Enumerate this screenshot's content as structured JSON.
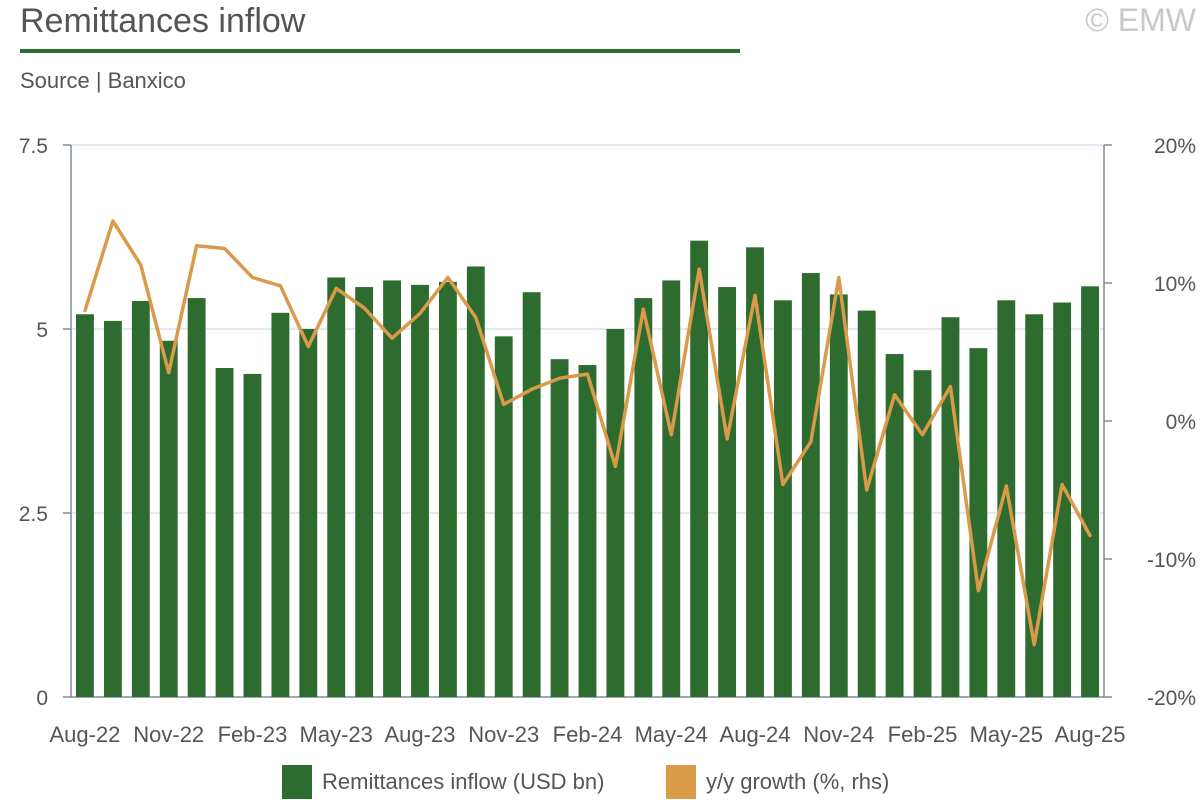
{
  "header": {
    "title": "Remittances inflow",
    "copyright": "© EMW",
    "source": "Source | Banxico"
  },
  "colors": {
    "bars": "#2e6b2e",
    "line": "#d99a4a",
    "grid": "#d9e2ec",
    "axis": "#7f8a99",
    "text": "#555555"
  },
  "legend": {
    "bars_label": "Remittances inflow (USD bn)",
    "line_label": "y/y growth (%, rhs)"
  },
  "chart_data": {
    "type": "bar",
    "title": "Remittances inflow",
    "x_tick_labels": [
      "Aug-22",
      "Nov-22",
      "Feb-23",
      "May-23",
      "Aug-23",
      "Nov-23",
      "Feb-24",
      "May-24",
      "Aug-24",
      "Nov-24",
      "Feb-25",
      "May-25",
      "Aug-25"
    ],
    "categories": [
      "Aug-22",
      "Sep-22",
      "Oct-22",
      "Nov-22",
      "Dec-22",
      "Jan-23",
      "Feb-23",
      "Mar-23",
      "Apr-23",
      "May-23",
      "Jun-23",
      "Jul-23",
      "Aug-23",
      "Sep-23",
      "Oct-23",
      "Nov-23",
      "Dec-23",
      "Jan-24",
      "Feb-24",
      "Mar-24",
      "Apr-24",
      "May-24",
      "Jun-24",
      "Jul-24",
      "Aug-24",
      "Sep-24",
      "Oct-24",
      "Nov-24",
      "Dec-24",
      "Jan-25",
      "Feb-25",
      "Mar-25",
      "Apr-25",
      "May-25",
      "Jun-25",
      "Jul-25",
      "Aug-25"
    ],
    "series": [
      {
        "name": "Remittances inflow (USD bn)",
        "type": "bar",
        "axis": "left",
        "values": [
          5.2,
          5.11,
          5.38,
          4.84,
          5.42,
          4.47,
          4.39,
          5.22,
          5.0,
          5.7,
          5.57,
          5.66,
          5.6,
          5.64,
          5.85,
          4.9,
          5.5,
          4.59,
          4.51,
          5.0,
          5.42,
          5.66,
          6.2,
          5.57,
          6.11,
          5.39,
          5.76,
          5.47,
          5.25,
          4.66,
          4.44,
          5.16,
          4.74,
          5.39,
          5.2,
          5.36,
          5.58
        ]
      },
      {
        "name": "y/y growth (%, rhs)",
        "type": "line",
        "axis": "right",
        "values": [
          8.0,
          14.5,
          11.3,
          3.5,
          12.7,
          12.5,
          10.4,
          9.8,
          5.4,
          9.6,
          8.2,
          6.0,
          7.8,
          10.4,
          7.5,
          1.2,
          2.3,
          3.1,
          3.4,
          -3.3,
          8.1,
          -1.0,
          11.0,
          -1.3,
          9.1,
          -4.6,
          -1.5,
          10.4,
          -5.0,
          1.9,
          -1.0,
          2.5,
          -12.3,
          -4.7,
          -16.2,
          -4.6,
          -8.3
        ]
      }
    ],
    "y_left": {
      "min": 0,
      "max": 7.5,
      "ticks": [
        0,
        2.5,
        5,
        7.5
      ],
      "tick_labels": [
        "0",
        "2.5",
        "5",
        "7.5"
      ]
    },
    "y_right": {
      "min": -20,
      "max": 20,
      "ticks": [
        -20,
        -10,
        0,
        10,
        20
      ],
      "tick_labels": [
        "-20%",
        "-10%",
        "0%",
        "10%",
        "20%"
      ]
    },
    "grid": true,
    "legend_position": "bottom"
  }
}
